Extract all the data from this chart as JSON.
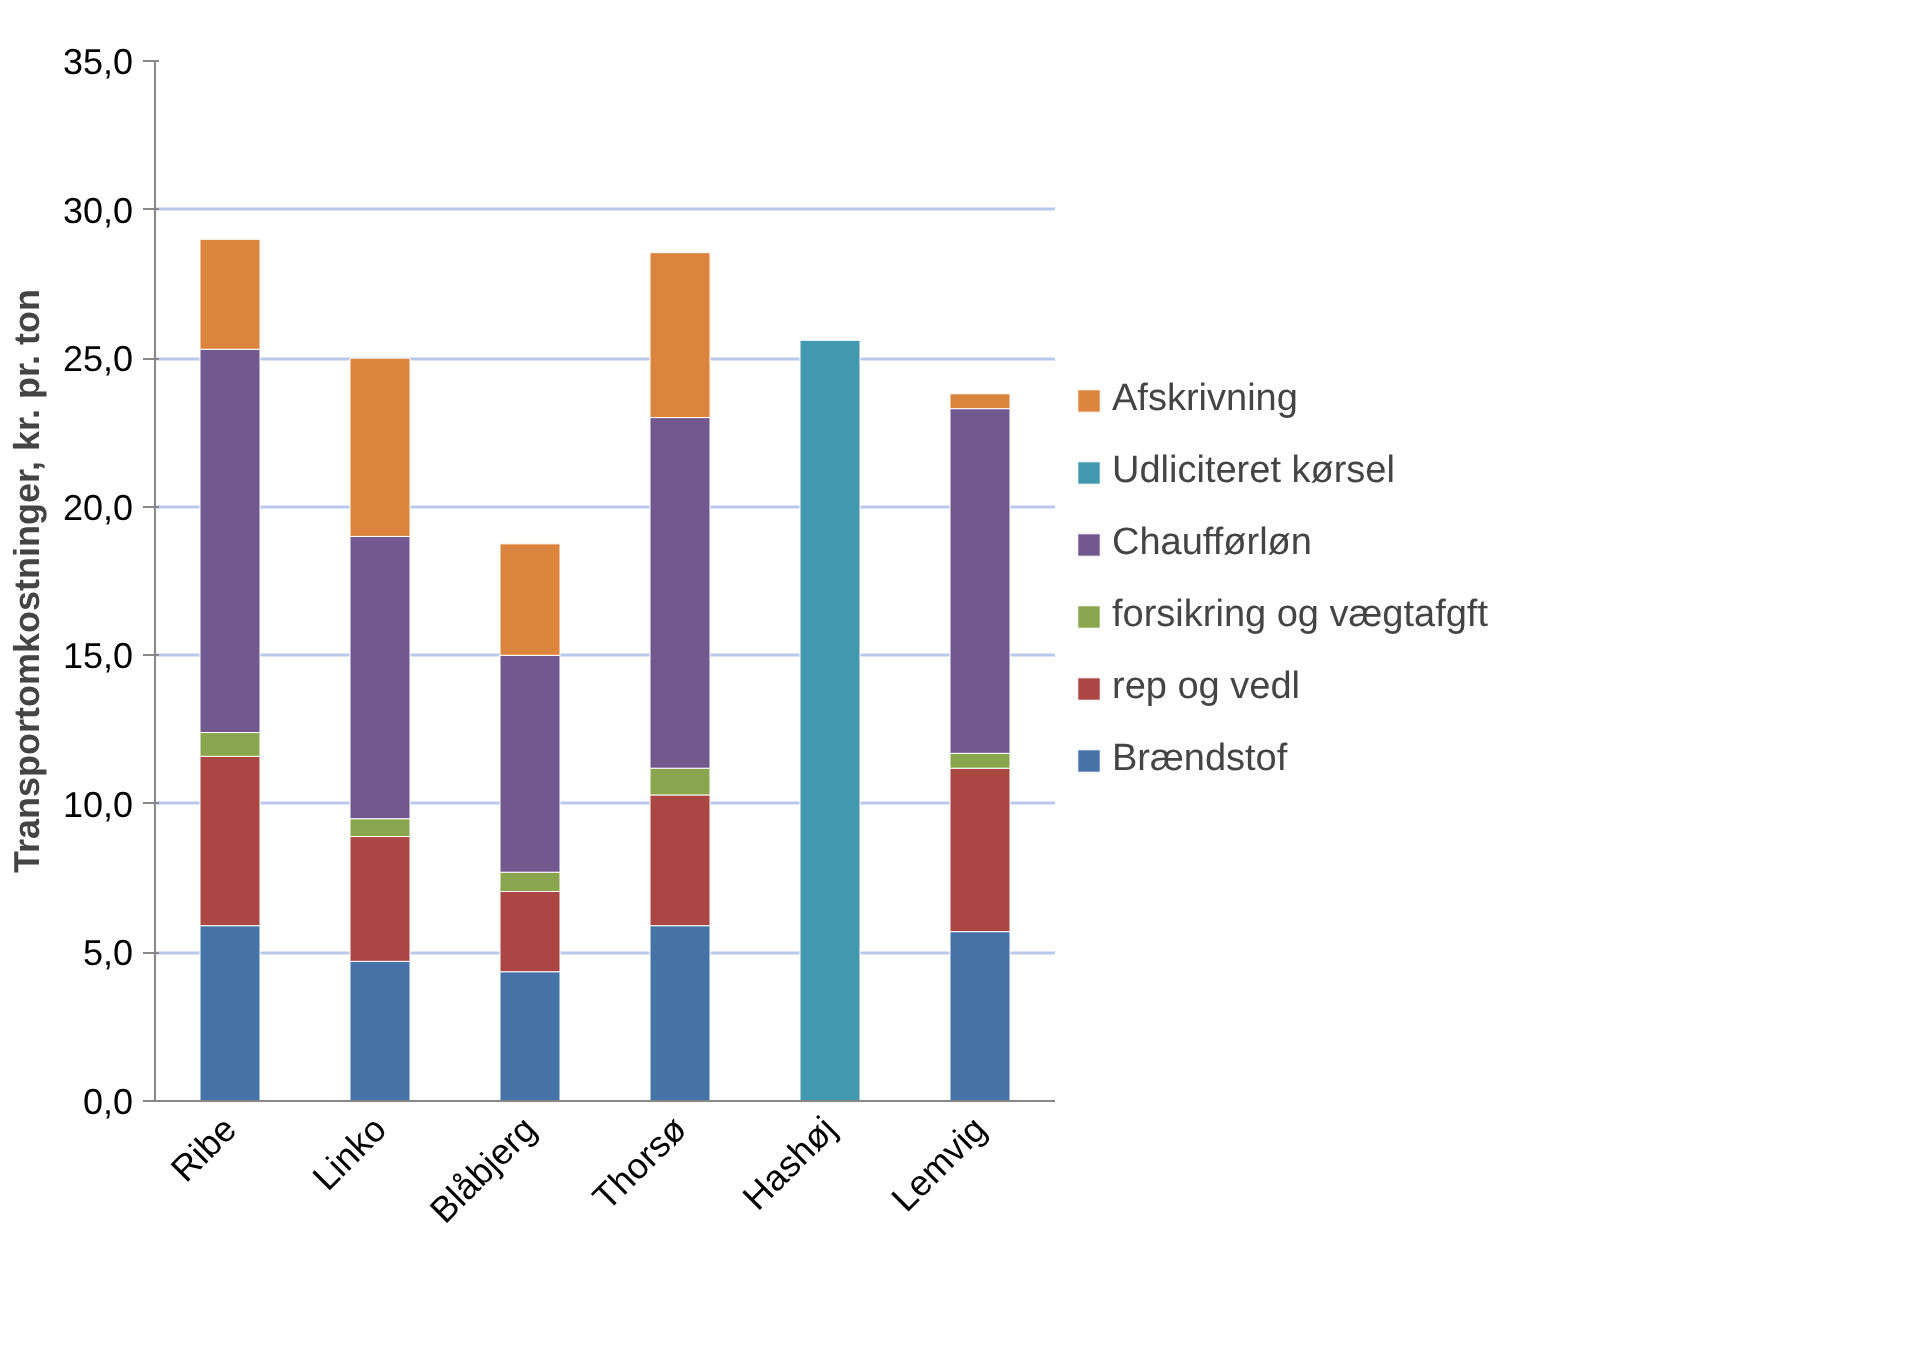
{
  "chart_data": {
    "type": "bar",
    "stacked": true,
    "ylabel": "Transportomkostninger, kr. pr. ton",
    "categories": [
      "Ribe",
      "Linko",
      "Blåbjerg",
      "Thorsø",
      "Hashøj",
      "Lemvig"
    ],
    "series": [
      {
        "name": "Brændstof",
        "color": "#4572a7",
        "values": [
          5.9,
          4.7,
          4.35,
          5.9,
          null,
          5.7
        ]
      },
      {
        "name": "rep og vedl",
        "color": "#aa4643",
        "values": [
          5.7,
          4.2,
          2.7,
          4.4,
          null,
          5.5
        ]
      },
      {
        "name": "forsikring og vægtafgft",
        "color": "#89a54e",
        "values": [
          0.8,
          0.6,
          0.65,
          0.9,
          null,
          0.5
        ]
      },
      {
        "name": "Chaufførløn",
        "color": "#71588f",
        "values": [
          12.9,
          9.5,
          7.3,
          11.8,
          null,
          11.6
        ]
      },
      {
        "name": "Udliciteret kørsel",
        "color": "#4198af",
        "values": [
          null,
          null,
          null,
          null,
          25.6,
          null
        ]
      },
      {
        "name": "Afskrivning",
        "color": "#db843d",
        "values": [
          3.7,
          6.0,
          3.75,
          5.55,
          null,
          0.5
        ]
      }
    ],
    "ylim": [
      0,
      35
    ],
    "yticks": [
      {
        "value": 0,
        "label": "0,0"
      },
      {
        "value": 5,
        "label": "5,0"
      },
      {
        "value": 10,
        "label": "10,0"
      },
      {
        "value": 15,
        "label": "15,0"
      },
      {
        "value": 20,
        "label": "20,0"
      },
      {
        "value": 25,
        "label": "25,0"
      },
      {
        "value": 30,
        "label": "30,0"
      },
      {
        "value": 35,
        "label": "35,0"
      }
    ],
    "grid": "y",
    "legend": "right"
  }
}
